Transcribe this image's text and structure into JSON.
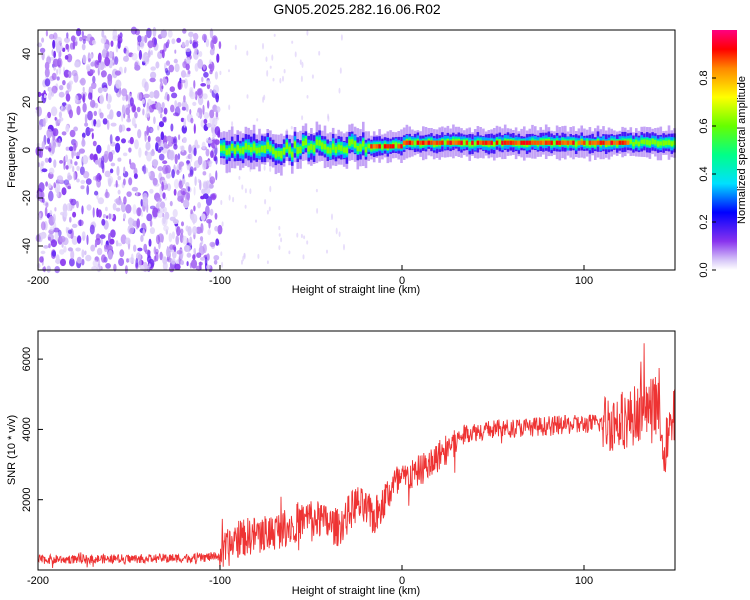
{
  "title": "GN05.2025.282.16.06.R02",
  "chart_data": [
    {
      "type": "heatmap",
      "xlabel": "Height of straight line (km)",
      "ylabel": "Frequency (Hz)",
      "xlim": [
        -200,
        150
      ],
      "ylim": [
        -50,
        50
      ],
      "xticks": [
        -200,
        -100,
        0,
        100
      ],
      "yticks": [
        -40,
        -20,
        0,
        20,
        40
      ],
      "colorbar": {
        "label": "Normalized spectral amplitude",
        "range": [
          0,
          1
        ],
        "ticks": [
          0.0,
          0.2,
          0.4,
          0.6,
          0.8
        ]
      },
      "features": {
        "noise_region_x": [
          -200,
          -100
        ],
        "ridge_x": [
          -100,
          150
        ],
        "ridge_frequency_hz": 3,
        "ridge_peak_amplitude": 1.0
      }
    },
    {
      "type": "line",
      "xlabel": "Height of straight line (km)",
      "ylabel": "SNR (10 * v/v)",
      "xlim": [
        -200,
        150
      ],
      "ylim": [
        0,
        6800
      ],
      "xticks": [
        -200,
        -100,
        0,
        100
      ],
      "yticks": [
        2000,
        4000,
        6000
      ],
      "color": "#ee3333",
      "x": [
        -200,
        -150,
        -110,
        -100,
        -90,
        -70,
        -50,
        -35,
        -25,
        -15,
        -5,
        5,
        15,
        25,
        35,
        50,
        65,
        80,
        100,
        115,
        125,
        130,
        140,
        145,
        150
      ],
      "y": [
        300,
        320,
        350,
        400,
        900,
        1100,
        1500,
        1200,
        1900,
        1500,
        2400,
        2700,
        3000,
        3500,
        3900,
        4000,
        4050,
        4100,
        4150,
        4200,
        4300,
        4500,
        4700,
        3500,
        4400
      ]
    }
  ]
}
